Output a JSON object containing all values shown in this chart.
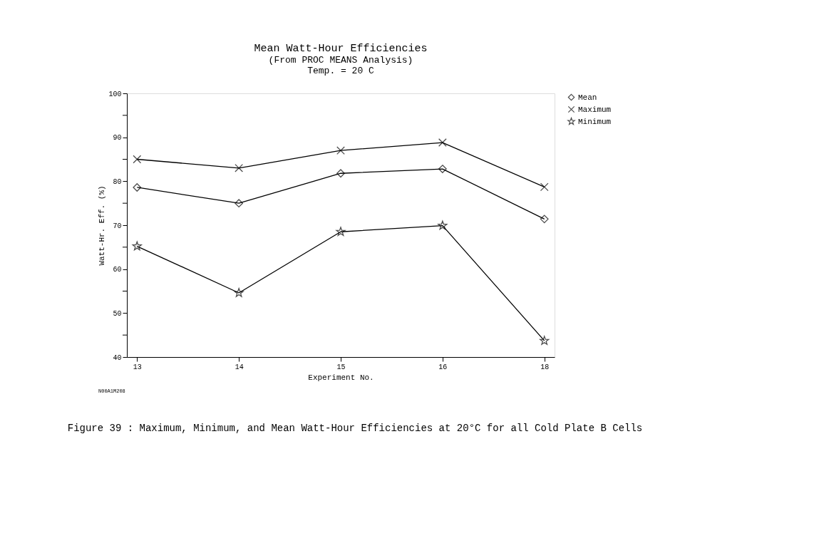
{
  "chart_data": {
    "type": "line",
    "title": "Mean Watt-Hour Efficiencies",
    "subtitle": [
      "(From PROC MEANS Analysis)",
      "Temp. = 20 C"
    ],
    "xlabel": "Experiment No.",
    "ylabel": "Watt-Hr. Eff. (%)",
    "categories": [
      "13",
      "14",
      "15",
      "16",
      "18"
    ],
    "series": [
      {
        "name": "Mean",
        "color": "#000000",
        "marker": "diamond",
        "values": [
          78.6,
          75.0,
          81.8,
          82.8,
          71.4
        ]
      },
      {
        "name": "Maximum",
        "color": "#000000",
        "marker": "cross",
        "values": [
          85.0,
          83.0,
          87.0,
          88.8,
          78.7
        ]
      },
      {
        "name": "Minimum",
        "color": "#000000",
        "marker": "star",
        "values": [
          65.2,
          54.6,
          68.5,
          69.9,
          43.7
        ]
      }
    ],
    "ylim": [
      40,
      100
    ],
    "yticks": [
      40,
      {
        "value": 45,
        "label": null
      },
      50,
      {
        "value": 55,
        "label": null
      },
      60,
      {
        "value": 65,
        "label": null
      },
      70,
      {
        "value": 75,
        "label": null
      },
      80,
      {
        "value": 85,
        "label": null
      },
      90,
      {
        "value": 95,
        "label": null
      },
      100
    ],
    "grid": false,
    "legend": "right",
    "line_style": "solid",
    "annotations": [
      "N00A1M208",
      "Figure 39 :  Maximum, Minimum, and Mean Watt-Hour Efficiencies at 20°C for all Cold Plate B Cells"
    ]
  }
}
